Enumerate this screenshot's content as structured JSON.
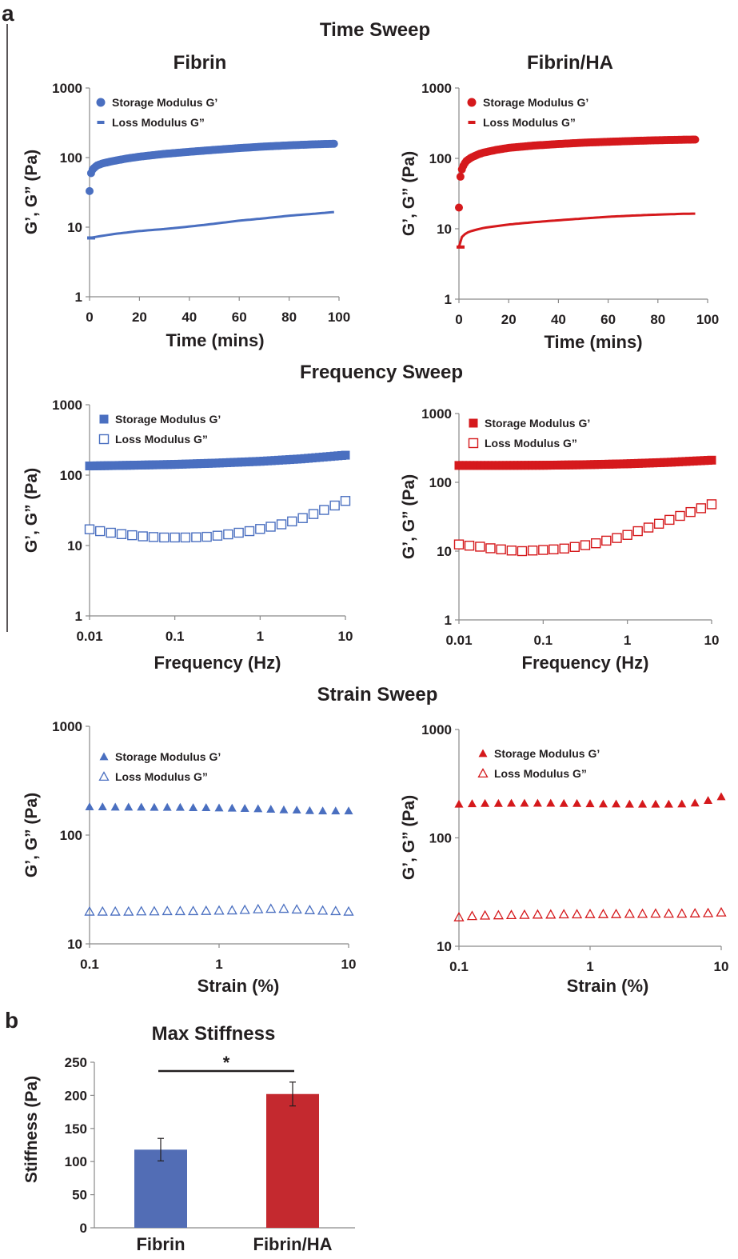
{
  "figure": {
    "panel_a_label": "a",
    "panel_b_label": "b",
    "section_titles": [
      "Time Sweep",
      "Frequency Sweep",
      "Strain Sweep"
    ]
  },
  "colors": {
    "fibrin": "#4a6fc0",
    "fibrin_ha": "#d5191c",
    "bar_fibrin": "#526db5",
    "bar_fibrin_ha": "#c4292f"
  },
  "chart_data": [
    {
      "id": "time-fibrin",
      "type": "scatter",
      "title": "Fibrin",
      "xlabel": "Time (mins)",
      "ylabel": "G’, G” (Pa)",
      "x_scale": "linear",
      "xlim": [
        0,
        100
      ],
      "x_ticks": [
        "0",
        "20",
        "40",
        "60",
        "80",
        "100"
      ],
      "y_scale": "log",
      "ylim": [
        1,
        1000
      ],
      "y_ticks": [
        "1",
        "10",
        "100",
        "1000"
      ],
      "legend_placement": "top-left",
      "series": [
        {
          "name": "Storage Modulus G’",
          "marker": "circle",
          "style": "dense",
          "color": "#4a6fc0",
          "x": [
            0,
            0.2,
            0.5,
            1,
            2,
            3,
            5,
            8,
            10,
            15,
            20,
            30,
            40,
            50,
            60,
            70,
            80,
            90,
            98
          ],
          "y": [
            33,
            45,
            58,
            66,
            72,
            77,
            82,
            87,
            90,
            97,
            103,
            113,
            121,
            129,
            137,
            144,
            150,
            155,
            158
          ]
        },
        {
          "name": "Loss Modulus G”",
          "marker": "dash",
          "style": "line",
          "color": "#4a6fc0",
          "x": [
            0,
            5,
            10,
            20,
            30,
            40,
            50,
            60,
            70,
            80,
            90,
            98
          ],
          "y": [
            7,
            7.5,
            8,
            8.8,
            9.4,
            10.2,
            11.2,
            12.4,
            13.4,
            14.6,
            15.6,
            16.5
          ]
        }
      ]
    },
    {
      "id": "time-fibrinha",
      "type": "scatter",
      "title": "Fibrin/HA",
      "xlabel": "Time (mins)",
      "ylabel": "G’, G” (Pa)",
      "x_scale": "linear",
      "xlim": [
        0,
        100
      ],
      "x_ticks": [
        "0",
        "20",
        "40",
        "60",
        "80",
        "100"
      ],
      "y_scale": "log",
      "ylim": [
        1,
        1000
      ],
      "y_ticks": [
        "1",
        "10",
        "100",
        "1000"
      ],
      "legend_placement": "top-left",
      "series": [
        {
          "name": "Storage Modulus G’",
          "marker": "circle",
          "style": "dense",
          "color": "#d5191c",
          "x": [
            0,
            0.1,
            0.3,
            0.6,
            1,
            2,
            3,
            5,
            8,
            10,
            15,
            20,
            30,
            40,
            50,
            60,
            70,
            80,
            90,
            95
          ],
          "y": [
            20,
            30,
            42,
            55,
            67,
            82,
            92,
            103,
            115,
            121,
            132,
            141,
            152,
            160,
            167,
            172,
            177,
            181,
            184,
            185
          ]
        },
        {
          "name": "Loss Modulus G”",
          "marker": "dash",
          "style": "line",
          "color": "#d5191c",
          "x": [
            0,
            0.3,
            1,
            2,
            3,
            5,
            10,
            20,
            30,
            40,
            50,
            60,
            70,
            80,
            90,
            95
          ],
          "y": [
            5.5,
            6.5,
            7.5,
            8.2,
            8.7,
            9.3,
            10.3,
            11.5,
            12.4,
            13.2,
            14,
            14.8,
            15.4,
            15.9,
            16.3,
            16.4
          ]
        }
      ]
    },
    {
      "id": "freq-fibrin",
      "type": "scatter",
      "title": "",
      "xlabel": "Frequency (Hz)",
      "ylabel": "G’, G” (Pa)",
      "x_scale": "log",
      "xlim": [
        0.01,
        10
      ],
      "x_ticks": [
        "0.01",
        "0.1",
        "1",
        "10"
      ],
      "y_scale": "log",
      "ylim": [
        1,
        1000
      ],
      "y_ticks": [
        "1",
        "10",
        "100",
        "1000"
      ],
      "legend_placement": "top-left",
      "series": [
        {
          "name": "Storage Modulus G’",
          "marker": "square",
          "style": "dense",
          "color": "#4a6fc0",
          "x": [
            0.01,
            0.03,
            0.1,
            0.3,
            1,
            3,
            10
          ],
          "y": [
            135,
            138,
            142,
            148,
            157,
            170,
            192
          ]
        },
        {
          "name": "Loss Modulus G”",
          "marker": "square-open",
          "style": "points",
          "color": "#4a6fc0",
          "x": [
            0.01,
            0.0133,
            0.0178,
            0.0237,
            0.0316,
            0.0422,
            0.0562,
            0.075,
            0.1,
            0.133,
            0.178,
            0.237,
            0.316,
            0.422,
            0.562,
            0.75,
            1,
            1.33,
            1.78,
            2.37,
            3.16,
            4.22,
            5.62,
            7.5,
            10
          ],
          "y": [
            17,
            16,
            15.2,
            14.5,
            14,
            13.5,
            13.2,
            13,
            13,
            13,
            13.1,
            13.3,
            13.8,
            14.4,
            15.2,
            16,
            17.2,
            18.5,
            20,
            22,
            24.5,
            28,
            32,
            37,
            43
          ]
        }
      ]
    },
    {
      "id": "freq-fibrinha",
      "type": "scatter",
      "title": "",
      "xlabel": "Frequency (Hz)",
      "ylabel": "G’, G” (Pa)",
      "x_scale": "log",
      "xlim": [
        0.01,
        10
      ],
      "x_ticks": [
        "0.01",
        "0.1",
        "1",
        "10"
      ],
      "y_scale": "log",
      "ylim": [
        1,
        1000
      ],
      "y_ticks": [
        "1",
        "10",
        "100",
        "1000"
      ],
      "legend_placement": "top-left",
      "series": [
        {
          "name": "Storage Modulus G’",
          "marker": "square",
          "style": "dense",
          "color": "#d5191c",
          "x": [
            0.01,
            0.03,
            0.1,
            0.3,
            1,
            3,
            10
          ],
          "y": [
            176,
            176,
            177,
            180,
            186,
            195,
            210
          ]
        },
        {
          "name": "Loss Modulus G”",
          "marker": "square-open",
          "style": "points",
          "color": "#d5191c",
          "x": [
            0.01,
            0.0133,
            0.0178,
            0.0237,
            0.0316,
            0.0422,
            0.0562,
            0.075,
            0.1,
            0.133,
            0.178,
            0.237,
            0.316,
            0.422,
            0.562,
            0.75,
            1,
            1.33,
            1.78,
            2.37,
            3.16,
            4.22,
            5.62,
            7.5,
            10
          ],
          "y": [
            12.5,
            12,
            11.6,
            11,
            10.6,
            10.2,
            10,
            10.2,
            10.4,
            10.6,
            10.9,
            11.5,
            12.2,
            13,
            14.2,
            15.5,
            17.2,
            19.5,
            22,
            25,
            28.5,
            32.5,
            37,
            42,
            48
          ]
        }
      ]
    },
    {
      "id": "strain-fibrin",
      "type": "scatter",
      "title": "",
      "xlabel": "Strain (%)",
      "ylabel": "G’, G” (Pa)",
      "x_scale": "log",
      "xlim": [
        0.1,
        10
      ],
      "x_ticks": [
        "0.1",
        "1",
        "10"
      ],
      "y_scale": "log",
      "ylim": [
        10,
        1000
      ],
      "y_ticks": [
        "10",
        "100",
        "1000"
      ],
      "legend_placement": "top-left",
      "series": [
        {
          "name": "Storage Modulus G’",
          "marker": "triangle",
          "style": "points",
          "color": "#4a6fc0",
          "x": [
            0.1,
            0.126,
            0.158,
            0.2,
            0.251,
            0.316,
            0.398,
            0.501,
            0.631,
            0.794,
            1,
            1.26,
            1.58,
            2,
            2.51,
            3.16,
            3.98,
            5.01,
            6.31,
            7.94,
            10
          ],
          "y": [
            182,
            182,
            181,
            181,
            181,
            180,
            180,
            180,
            179,
            179,
            178,
            177,
            176,
            175,
            173,
            171,
            170,
            168,
            167,
            167,
            167
          ]
        },
        {
          "name": "Loss Modulus G”",
          "marker": "triangle-open",
          "style": "points",
          "color": "#4a6fc0",
          "x": [
            0.1,
            0.126,
            0.158,
            0.2,
            0.251,
            0.316,
            0.398,
            0.501,
            0.631,
            0.794,
            1,
            1.26,
            1.58,
            2,
            2.51,
            3.16,
            3.98,
            5.01,
            6.31,
            7.94,
            10
          ],
          "y": [
            19.8,
            19.8,
            19.8,
            19.8,
            19.9,
            19.9,
            20,
            20,
            20,
            20.1,
            20.2,
            20.3,
            20.5,
            20.8,
            21,
            21,
            20.7,
            20.4,
            20.2,
            20,
            19.8
          ]
        }
      ]
    },
    {
      "id": "strain-fibrinha",
      "type": "scatter",
      "title": "",
      "xlabel": "Strain (%)",
      "ylabel": "G’, G” (Pa)",
      "x_scale": "log",
      "xlim": [
        0.1,
        10
      ],
      "x_ticks": [
        "0.1",
        "1",
        "10"
      ],
      "y_scale": "log",
      "ylim": [
        10,
        1000
      ],
      "y_ticks": [
        "10",
        "100",
        "1000"
      ],
      "legend_placement": "top-left",
      "series": [
        {
          "name": "Storage Modulus G’",
          "marker": "triangle",
          "style": "points",
          "color": "#d5191c",
          "x": [
            0.1,
            0.126,
            0.158,
            0.2,
            0.251,
            0.316,
            0.398,
            0.501,
            0.631,
            0.794,
            1,
            1.26,
            1.58,
            2,
            2.51,
            3.16,
            3.98,
            5.01,
            6.31,
            7.94,
            10
          ],
          "y": [
            205,
            207,
            208,
            208,
            209,
            209,
            209,
            209,
            208,
            208,
            207,
            206,
            206,
            205,
            205,
            205,
            205,
            206,
            210,
            222,
            240
          ]
        },
        {
          "name": "Loss Modulus G”",
          "marker": "triangle-open",
          "style": "points",
          "color": "#d5191c",
          "x": [
            0.1,
            0.126,
            0.158,
            0.2,
            0.251,
            0.316,
            0.398,
            0.501,
            0.631,
            0.794,
            1,
            1.26,
            1.58,
            2,
            2.51,
            3.16,
            3.98,
            5.01,
            6.31,
            7.94,
            10
          ],
          "y": [
            18.5,
            19,
            19.2,
            19.3,
            19.4,
            19.5,
            19.6,
            19.6,
            19.7,
            19.7,
            19.8,
            19.8,
            19.8,
            19.9,
            19.9,
            20,
            20,
            20,
            20.1,
            20.2,
            20.5
          ]
        }
      ]
    },
    {
      "id": "max-stiffness",
      "type": "bar",
      "title": "Max Stiffness",
      "xlabel": "",
      "ylabel": "Stiffness (Pa)",
      "categories": [
        "Fibrin",
        "Fibrin/HA"
      ],
      "values": [
        118,
        202
      ],
      "errors": [
        17,
        18
      ],
      "ylim": [
        0,
        250
      ],
      "y_ticks": [
        "0",
        "50",
        "100",
        "150",
        "200",
        "250"
      ],
      "significance": {
        "label": "*",
        "between": [
          "Fibrin",
          "Fibrin/HA"
        ]
      }
    }
  ]
}
